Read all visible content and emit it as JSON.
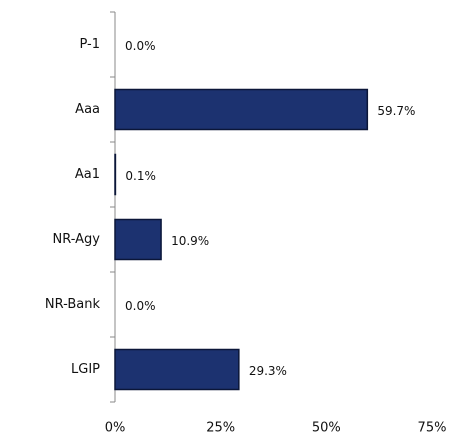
{
  "chart_data": {
    "type": "hbar",
    "categories": [
      "P-1",
      "Aaa",
      "Aa1",
      "NR-Agy",
      "NR-Bank",
      "LGIP"
    ],
    "values": [
      0.0,
      59.7,
      0.1,
      10.9,
      0.0,
      29.3
    ],
    "value_labels": [
      "0.0%",
      "59.7%",
      "0.1%",
      "10.9%",
      "0.0%",
      "29.3%"
    ],
    "color": "#1c3270",
    "xlim": [
      0,
      75
    ],
    "xticks": [
      {
        "value": 0,
        "label": "0%"
      },
      {
        "value": 25,
        "label": "25%"
      },
      {
        "value": 50,
        "label": "50%"
      },
      {
        "value": 75,
        "label": "75%"
      }
    ],
    "grid": false
  }
}
